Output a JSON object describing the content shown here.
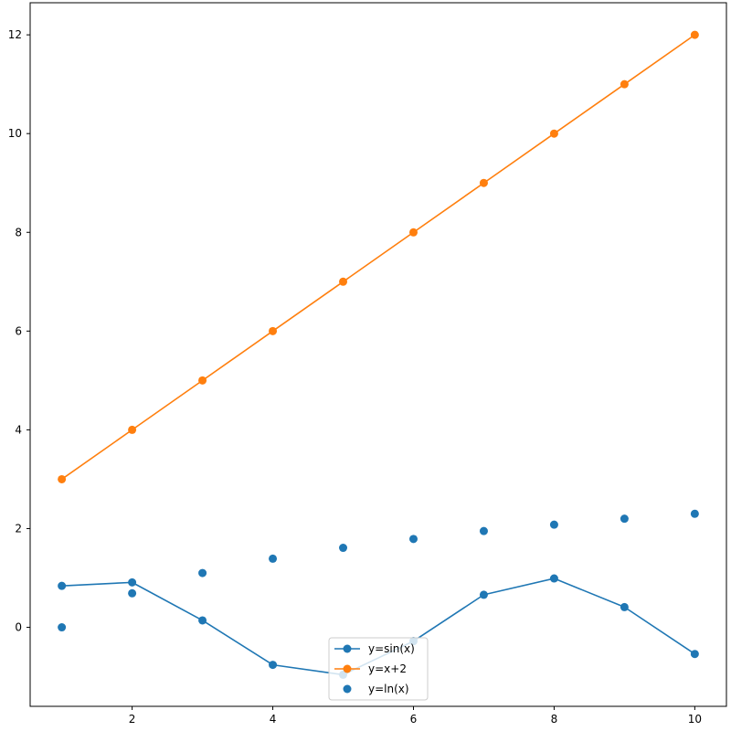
{
  "chart_data": {
    "type": "line",
    "xlim": [
      0.55,
      10.45
    ],
    "ylim": [
      -1.6,
      12.65
    ],
    "xticks": [
      2,
      4,
      6,
      8,
      10
    ],
    "yticks": [
      0,
      2,
      4,
      6,
      8,
      10,
      12
    ],
    "grid": false,
    "legend_position": "bottom-center",
    "series": [
      {
        "name": "y=sin(x)",
        "style": "line-marker",
        "color": "#1f77b4",
        "x": [
          1,
          2,
          3,
          4,
          5,
          6,
          7,
          8,
          9,
          10
        ],
        "y": [
          0.84,
          0.91,
          0.14,
          -0.76,
          -0.96,
          -0.28,
          0.66,
          0.99,
          0.41,
          -0.54
        ]
      },
      {
        "name": "y=x+2",
        "style": "line-marker",
        "color": "#ff7f0e",
        "x": [
          1,
          2,
          3,
          4,
          5,
          6,
          7,
          8,
          9,
          10
        ],
        "y": [
          3,
          4,
          5,
          6,
          7,
          8,
          9,
          10,
          11,
          12
        ]
      },
      {
        "name": "y=ln(x)",
        "style": "scatter",
        "color": "#1f77b4",
        "x": [
          1,
          2,
          3,
          4,
          5,
          6,
          7,
          8,
          9,
          10
        ],
        "y": [
          0,
          0.69,
          1.1,
          1.39,
          1.61,
          1.79,
          1.95,
          2.08,
          2.2,
          2.3
        ]
      }
    ]
  }
}
